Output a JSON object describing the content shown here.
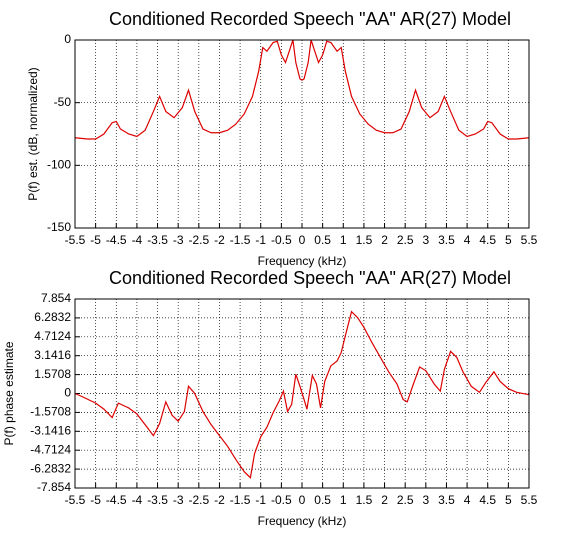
{
  "chart_data": [
    {
      "type": "line",
      "title": "Conditioned Recorded Speech \"AA\" AR(27) Model",
      "xlabel": "Frequency (kHz)",
      "ylabel": "P(f) est. (dB, normalized)",
      "color": "#dd0000",
      "grid": true,
      "x": [
        -5.5,
        -5.2,
        -5.0,
        -4.8,
        -4.6,
        -4.5,
        -4.4,
        -4.2,
        -4.0,
        -3.8,
        -3.6,
        -3.45,
        -3.3,
        -3.1,
        -2.9,
        -2.75,
        -2.6,
        -2.4,
        -2.2,
        -2.0,
        -1.8,
        -1.6,
        -1.4,
        -1.2,
        -1.05,
        -0.95,
        -0.85,
        -0.7,
        -0.6,
        -0.5,
        -0.4,
        -0.3,
        -0.22,
        -0.15,
        -0.05,
        0,
        0.05,
        0.15,
        0.22,
        0.3,
        0.4,
        0.5,
        0.6,
        0.7,
        0.85,
        0.95,
        1.05,
        1.2,
        1.4,
        1.6,
        1.8,
        2.0,
        2.2,
        2.4,
        2.6,
        2.75,
        2.9,
        3.1,
        3.3,
        3.45,
        3.6,
        3.8,
        4.0,
        4.2,
        4.4,
        4.5,
        4.6,
        4.8,
        5.0,
        5.2,
        5.5
      ],
      "values": [
        -78,
        -79,
        -79,
        -75,
        -66,
        -65,
        -71,
        -75,
        -77,
        -72,
        -57,
        -45,
        -57,
        -62,
        -54,
        -40,
        -57,
        -71,
        -74,
        -74,
        -72,
        -67,
        -59,
        -45,
        -25,
        -6,
        -9,
        -2,
        -1,
        -12,
        -18,
        -8,
        0,
        -18,
        -31,
        -32,
        -31,
        -18,
        0,
        -8,
        -18,
        -12,
        -1,
        -2,
        -9,
        -6,
        -25,
        -45,
        -59,
        -67,
        -72,
        -74,
        -74,
        -71,
        -57,
        -40,
        -54,
        -62,
        -57,
        -45,
        -57,
        -72,
        -77,
        -75,
        -71,
        -65,
        -66,
        -75,
        -79,
        -79,
        -78
      ],
      "xlim": [
        -5.5,
        5.5
      ],
      "xticks": [
        -5.5,
        -5,
        -4.5,
        -4,
        -3.5,
        -3,
        -2.5,
        -2,
        -1.5,
        -1,
        -0.5,
        0,
        0.5,
        1,
        1.5,
        2,
        2.5,
        3,
        3.5,
        4,
        4.5,
        5,
        5.5
      ],
      "ylim": [
        -150,
        0
      ],
      "yticks": [
        -150,
        -100,
        -50,
        0
      ]
    },
    {
      "type": "line",
      "title": "Conditioned Recorded Speech \"AA\" AR(27) Model",
      "xlabel": "Frequency (kHz)",
      "ylabel": "P(f) phase estimate",
      "color": "#dd0000",
      "grid": true,
      "x": [
        -5.5,
        -5.3,
        -5.0,
        -4.8,
        -4.6,
        -4.45,
        -4.2,
        -4.0,
        -3.8,
        -3.6,
        -3.45,
        -3.3,
        -3.15,
        -3.0,
        -2.85,
        -2.75,
        -2.6,
        -2.4,
        -2.2,
        -2.0,
        -1.8,
        -1.6,
        -1.4,
        -1.25,
        -1.15,
        -1.0,
        -0.85,
        -0.7,
        -0.55,
        -0.45,
        -0.35,
        -0.25,
        -0.15,
        -0.05,
        0.05,
        0.12,
        0.25,
        0.35,
        0.45,
        0.55,
        0.7,
        0.85,
        0.95,
        1.05,
        1.2,
        1.35,
        1.5,
        1.7,
        1.9,
        2.1,
        2.3,
        2.45,
        2.55,
        2.7,
        2.85,
        3.0,
        3.2,
        3.35,
        3.45,
        3.6,
        3.75,
        3.9,
        4.1,
        4.3,
        4.45,
        4.65,
        4.8,
        5.0,
        5.2,
        5.5
      ],
      "values": [
        0,
        -0.3,
        -0.8,
        -1.3,
        -2.0,
        -0.8,
        -1.2,
        -1.7,
        -2.6,
        -3.5,
        -2.5,
        -0.7,
        -1.8,
        -2.3,
        -1.5,
        0.6,
        0,
        -1.5,
        -2.6,
        -3.5,
        -4.4,
        -5.5,
        -6.5,
        -7.0,
        -5.0,
        -3.6,
        -2.8,
        -1.6,
        -0.6,
        0.2,
        -1.5,
        -0.9,
        1.6,
        0.6,
        -0.5,
        -1.3,
        1.5,
        0.8,
        -1.2,
        1.0,
        2.3,
        2.7,
        3.4,
        4.8,
        6.8,
        6.3,
        5.5,
        4.2,
        3.0,
        1.8,
        0.8,
        -0.5,
        -0.7,
        0.8,
        2.2,
        1.9,
        0.8,
        0.2,
        2.0,
        3.5,
        3.0,
        1.8,
        0.6,
        0.1,
        0.9,
        1.8,
        1.0,
        0.4,
        0.1,
        -0.1
      ],
      "xlim": [
        -5.5,
        5.5
      ],
      "xticks": [
        -5.5,
        -5,
        -4.5,
        -4,
        -3.5,
        -3,
        -2.5,
        -2,
        -1.5,
        -1,
        -0.5,
        0,
        0.5,
        1,
        1.5,
        2,
        2.5,
        3,
        3.5,
        4,
        4.5,
        5,
        5.5
      ],
      "ylim": [
        -7.854,
        7.854
      ],
      "yticks": [
        -7.854,
        -6.2832,
        -4.7124,
        -3.1416,
        -1.5708,
        0,
        1.5708,
        3.1416,
        4.7124,
        6.2832,
        7.854
      ]
    }
  ]
}
